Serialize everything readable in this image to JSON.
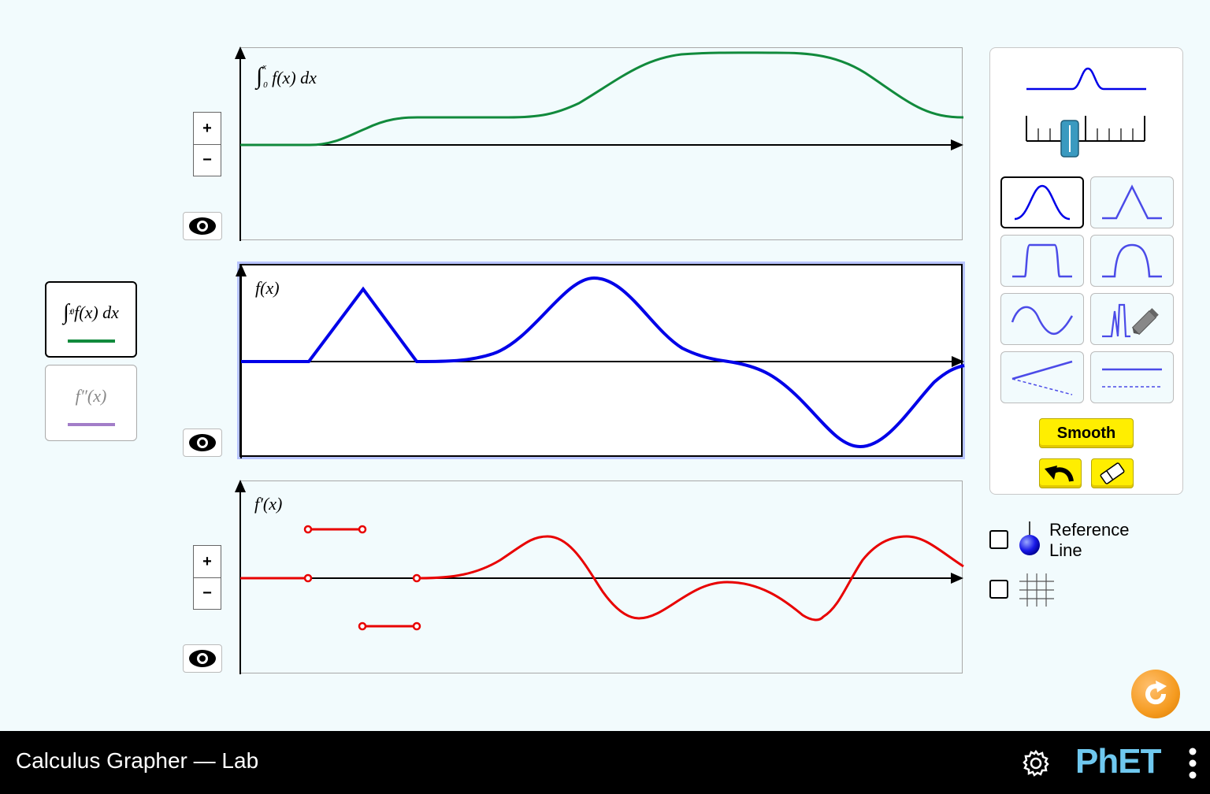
{
  "app_title": "Calculus Grapher — Lab",
  "graphs": {
    "integral": {
      "label_prefix": "∫",
      "label_lower": "0",
      "label_upper": "x",
      "label_body": "f(x) dx",
      "curve_color": "#118a3c"
    },
    "original": {
      "label": "f(x)",
      "curve_color": "#0000e8"
    },
    "derivative": {
      "label": "f′(x)",
      "curve_color": "#e80000"
    }
  },
  "zoom": {
    "in_label": "+",
    "out_label": "−"
  },
  "left_toggles": {
    "integral": {
      "label_body": "f(x) dx",
      "lower": "0",
      "upper": "x",
      "color": "#118a3c",
      "selected": true
    },
    "second_derivative": {
      "label": "f″(x)",
      "color": "#a27dc8",
      "selected": false
    }
  },
  "control_panel": {
    "width_slider_value_fraction": 0.36,
    "shapes": [
      {
        "id": "hill",
        "icon": "gaussian-hill-icon",
        "selected": true
      },
      {
        "id": "triangle",
        "icon": "triangle-icon",
        "selected": false
      },
      {
        "id": "pedestal",
        "icon": "pedestal-icon",
        "selected": false
      },
      {
        "id": "parabola",
        "icon": "parabola-icon",
        "selected": false
      },
      {
        "id": "sinusoid",
        "icon": "sinusoid-icon",
        "selected": false
      },
      {
        "id": "freeform",
        "icon": "freeform-pencil-icon",
        "selected": false
      },
      {
        "id": "tilt",
        "icon": "tilt-icon",
        "selected": false
      },
      {
        "id": "shift",
        "icon": "shift-icon",
        "selected": false
      }
    ],
    "smooth_label": "Smooth",
    "undo_icon": "undo-arrow-icon",
    "erase_icon": "eraser-icon"
  },
  "reference_line": {
    "label_line1": "Reference",
    "label_line2": "Line",
    "checked": false
  },
  "grid": {
    "icon": "grid-icon",
    "checked": false
  },
  "accent_colors": {
    "yellow": "#ffee00",
    "reset_orange": "#f59b20",
    "phet_blue": "#6fc8ef"
  },
  "logo_text": "PhET"
}
